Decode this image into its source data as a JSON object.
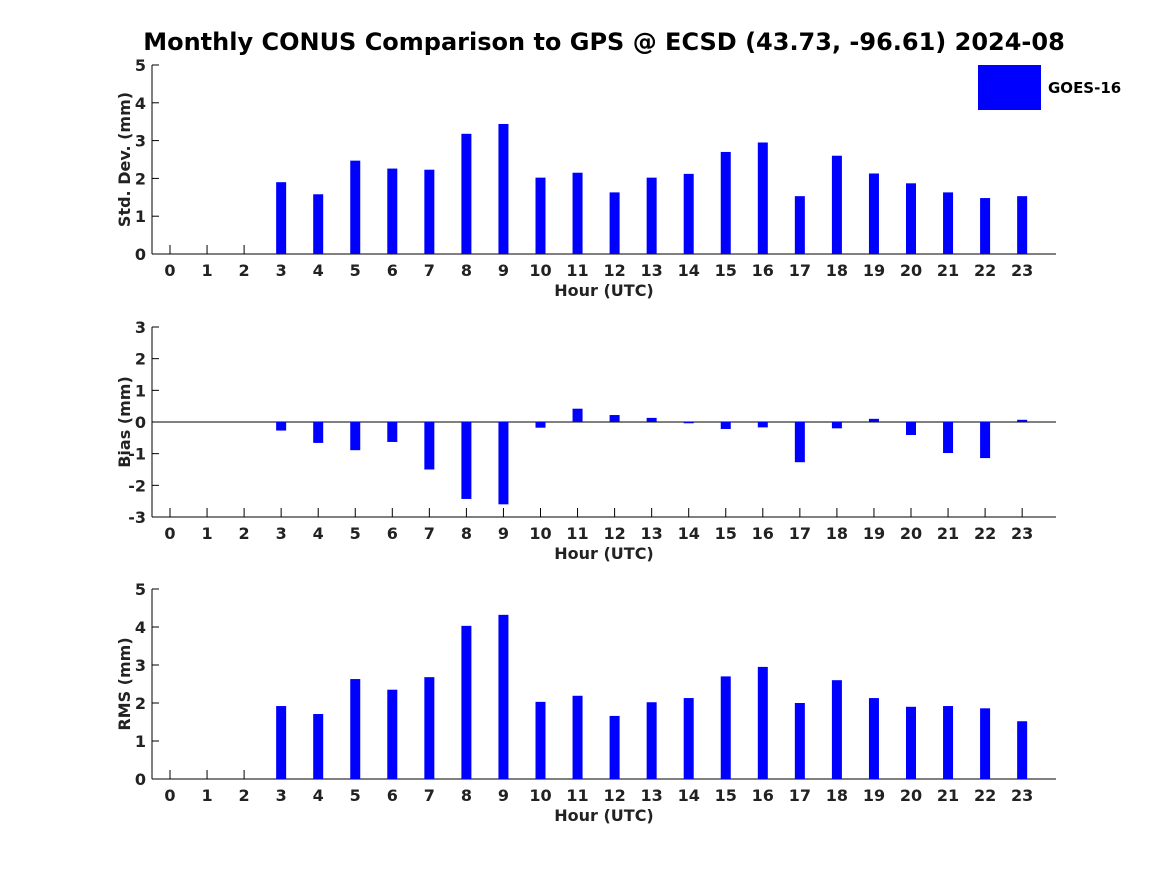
{
  "title": "Monthly CONUS Comparison to GPS @ ECSD (43.73, -96.61) 2024-08",
  "legend": {
    "label": "GOES-16",
    "color": "#0000ff"
  },
  "chart_data": [
    {
      "type": "bar",
      "name": "std-dev",
      "series_name": "GOES-16",
      "xlabel": "Hour (UTC)",
      "ylabel": "Std. Dev. (mm)",
      "ylim": [
        0,
        5
      ],
      "yticks": [
        0,
        1,
        2,
        3,
        4,
        5
      ],
      "categories": [
        "0",
        "1",
        "2",
        "3",
        "4",
        "5",
        "6",
        "7",
        "8",
        "9",
        "10",
        "11",
        "12",
        "13",
        "14",
        "15",
        "16",
        "17",
        "18",
        "19",
        "20",
        "21",
        "22",
        "23"
      ],
      "values": [
        null,
        null,
        null,
        1.9,
        1.58,
        2.47,
        2.26,
        2.23,
        3.18,
        3.44,
        2.02,
        2.15,
        1.63,
        2.02,
        2.12,
        2.7,
        2.95,
        1.53,
        2.6,
        2.13,
        1.87,
        1.63,
        1.48,
        1.53
      ],
      "color": "#0000ff"
    },
    {
      "type": "bar",
      "name": "bias",
      "series_name": "GOES-16",
      "xlabel": "Hour (UTC)",
      "ylabel": "Bias (mm)",
      "ylim": [
        -3,
        3
      ],
      "yticks": [
        -3,
        -2,
        -1,
        0,
        1,
        2,
        3
      ],
      "categories": [
        "0",
        "1",
        "2",
        "3",
        "4",
        "5",
        "6",
        "7",
        "8",
        "9",
        "10",
        "11",
        "12",
        "13",
        "14",
        "15",
        "16",
        "17",
        "18",
        "19",
        "20",
        "21",
        "22",
        "23"
      ],
      "values": [
        null,
        null,
        null,
        -0.27,
        -0.66,
        -0.89,
        -0.63,
        -1.5,
        -2.43,
        -2.6,
        -0.18,
        0.42,
        0.22,
        0.13,
        -0.04,
        -0.22,
        -0.17,
        -1.27,
        -0.2,
        0.1,
        -0.41,
        -0.98,
        -1.14,
        0.07
      ],
      "color": "#0000ff"
    },
    {
      "type": "bar",
      "name": "rms",
      "series_name": "GOES-16",
      "xlabel": "Hour (UTC)",
      "ylabel": "RMS (mm)",
      "ylim": [
        0,
        5
      ],
      "yticks": [
        0,
        1,
        2,
        3,
        4,
        5
      ],
      "categories": [
        "0",
        "1",
        "2",
        "3",
        "4",
        "5",
        "6",
        "7",
        "8",
        "9",
        "10",
        "11",
        "12",
        "13",
        "14",
        "15",
        "16",
        "17",
        "18",
        "19",
        "20",
        "21",
        "22",
        "23"
      ],
      "values": [
        null,
        null,
        null,
        1.92,
        1.71,
        2.63,
        2.35,
        2.68,
        4.03,
        4.32,
        2.03,
        2.19,
        1.66,
        2.02,
        2.13,
        2.7,
        2.95,
        2.0,
        2.6,
        2.13,
        1.9,
        1.92,
        1.86,
        1.52
      ],
      "color": "#0000ff"
    }
  ]
}
